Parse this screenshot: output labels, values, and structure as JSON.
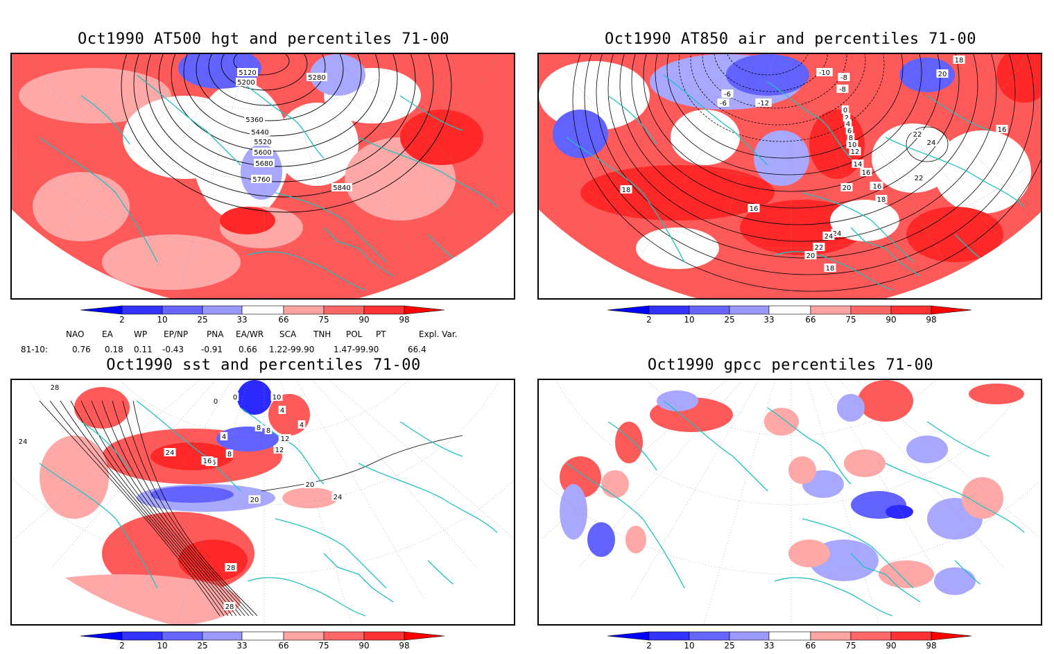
{
  "panels": [
    {
      "id": "p1",
      "title": "Oct1990 AT500 hgt and percentiles 71-00",
      "contour_labels": [
        "5120",
        "5200",
        "5280",
        "5360",
        "5440",
        "5520",
        "5600",
        "5680",
        "5760",
        "5840"
      ]
    },
    {
      "id": "p2",
      "title": "Oct1990 AT850 air and percentiles 71-00",
      "contour_labels": [
        "18",
        "20",
        "-10",
        "-8",
        "-6",
        "-8",
        "-6",
        "-12",
        "0",
        "2",
        "4",
        "6",
        "8",
        "10",
        "12",
        "14",
        "16",
        "16",
        "18",
        "20",
        "22",
        "24",
        "22",
        "24",
        "16",
        "16",
        "18",
        "16",
        "24",
        "22",
        "20",
        "18"
      ]
    },
    {
      "id": "p3",
      "title": "Oct1990 sst and percentiles 71-00",
      "contour_labels": [
        "28",
        "24",
        "0",
        "0",
        "10",
        "4",
        "4",
        "8",
        "8",
        "12",
        "16",
        "20",
        "24",
        "28",
        "24",
        "20",
        "12",
        "4",
        "8",
        "16",
        "20",
        "28",
        "28"
      ]
    },
    {
      "id": "p4",
      "title": "Oct1990 gpcc percentiles 71-00",
      "contour_labels": []
    }
  ],
  "colorbar": {
    "labels": [
      "2",
      "10",
      "25",
      "33",
      "66",
      "75",
      "90",
      "98"
    ],
    "colors": [
      "#0000ff",
      "#3333ff",
      "#6666ff",
      "#9999ff",
      "#ffffff",
      "#ffa3a3",
      "#ff6666",
      "#ff3333",
      "#ff0000"
    ]
  },
  "indices": {
    "headers": [
      "NAO",
      "EA",
      "WP",
      "EP/NP",
      "PNA",
      "EA/WR",
      "SCA",
      "TNH",
      "POL",
      "PT",
      "Expl. Var."
    ],
    "row_label": "81-10:",
    "values": [
      "0.76",
      "0.18",
      "0.11",
      "-0.43",
      "-0.91",
      "0.66",
      "1.22-99.90",
      "1.47-99.90",
      "66.4"
    ]
  },
  "map_colors": {
    "coast": "#20c0c0",
    "red_strong": "#ff2828",
    "red_mid": "#ff5a5a",
    "red_light": "#ffa8a8",
    "blue_strong": "#2a2aff",
    "blue_mid": "#6262ff",
    "blue_light": "#a8a8ff"
  }
}
